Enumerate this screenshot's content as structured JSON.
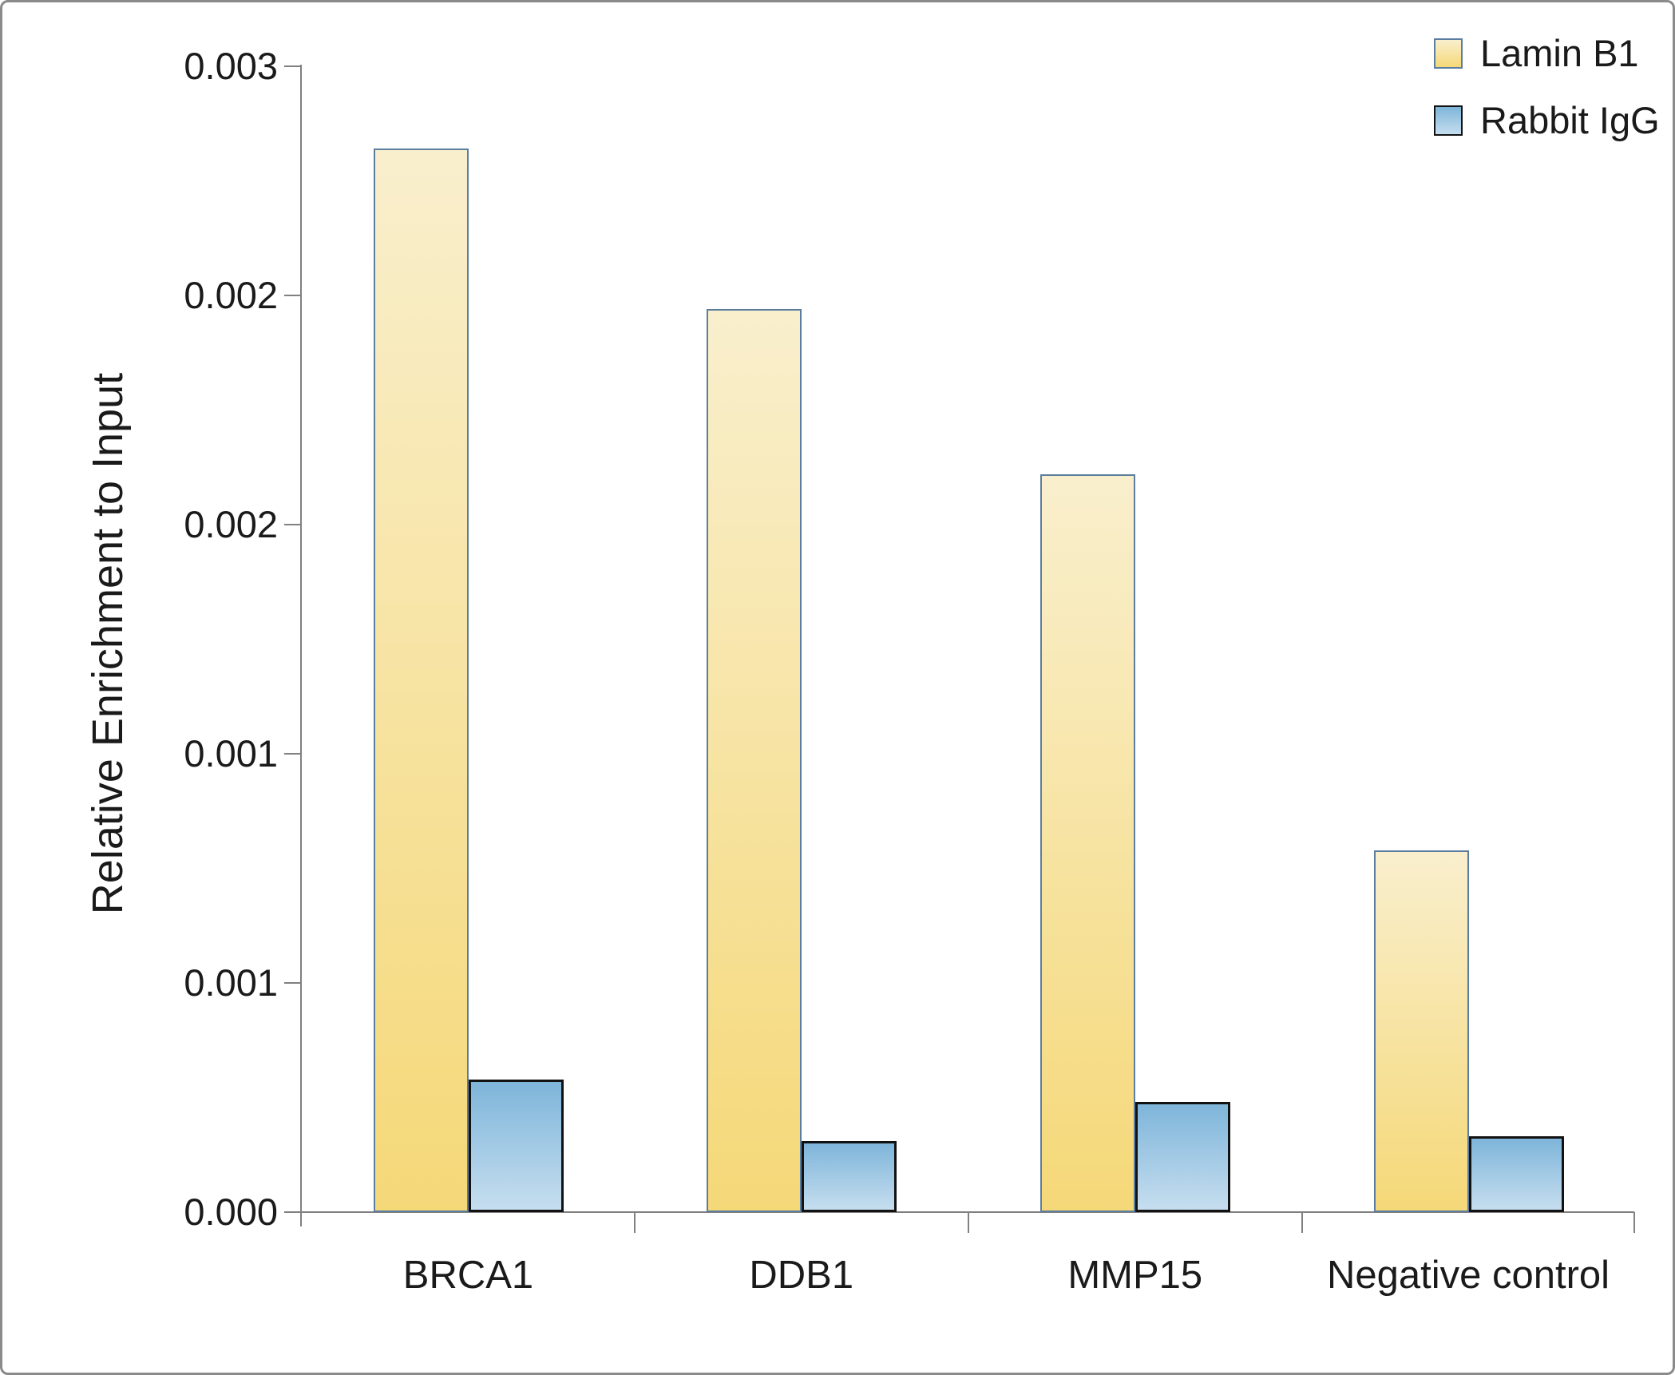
{
  "chart_data": {
    "type": "bar",
    "title": "",
    "xlabel": "",
    "ylabel": "Relative Enrichment to Input",
    "categories": [
      "BRCA1",
      "DDB1",
      "MMP15",
      "Negative control"
    ],
    "series": [
      {
        "name": "Lamin B1",
        "values": [
          0.00232,
          0.00197,
          0.00161,
          0.00079
        ],
        "fill_top": "#F9EFCD",
        "fill_bottom": "#F5D878",
        "border": "#5B7DA0"
      },
      {
        "name": "Rabbit IgG",
        "values": [
          0.00029,
          0.000155,
          0.00024,
          0.000165
        ],
        "fill_top": "#7EB5DA",
        "fill_bottom": "#C6DEEF",
        "border": "#121212"
      }
    ],
    "y_axis": {
      "min": 0,
      "max": 0.0025,
      "major_unit": 0.0005,
      "tick_labels_top_to_bottom": [
        "0.003",
        "0.002",
        "0.002",
        "0.001",
        "0.001",
        "0.000"
      ]
    },
    "legend_position": "top-right",
    "grid": false
  },
  "colors": {
    "axis": "#808080",
    "text": "#1A1A1A",
    "frame_border": "#8A8A8A",
    "background": "#FFFFFF"
  }
}
